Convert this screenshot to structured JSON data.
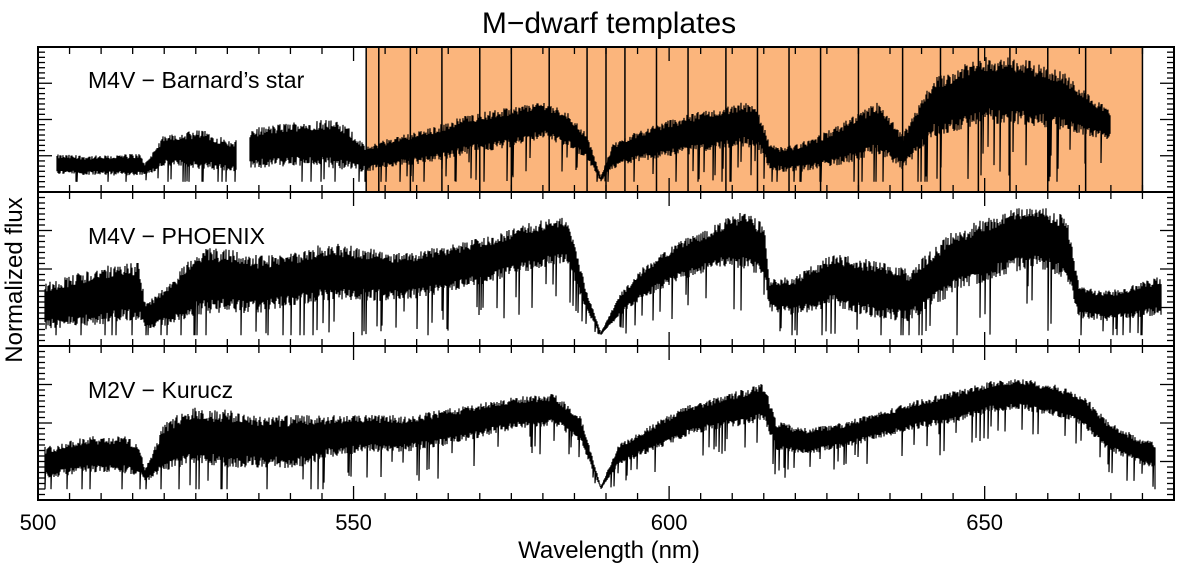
{
  "chart_data": {
    "type": "line",
    "title": "M−dwarf templates",
    "xlabel": "Wavelength (nm)",
    "ylabel": "Normalized flux",
    "xlim": [
      500,
      680
    ],
    "xticks": [
      500,
      550,
      600,
      650
    ],
    "x_minor_step": 5,
    "highlight": {
      "color": "#fbb57c",
      "x_range": [
        552,
        675
      ],
      "dividers": [
        552,
        554,
        559,
        564,
        570,
        575,
        581,
        587,
        590,
        593,
        598,
        603,
        609,
        614,
        619,
        624,
        630,
        637,
        643,
        649,
        654,
        660,
        666,
        675
      ]
    },
    "panels": [
      {
        "label": "M4V − Barnard’s star",
        "has_highlight": true,
        "ylim": [
          0,
          1
        ],
        "gaps": [
          [
            531.5,
            533.5
          ]
        ],
        "series": {
          "x": [
            503,
            510,
            516,
            517,
            520,
            526,
            531,
            534,
            540,
            546,
            549,
            552,
            556,
            562,
            568,
            575,
            580,
            584,
            587,
            589.2,
            591,
            594,
            600,
            606,
            612,
            614,
            616,
            618,
            621,
            624,
            629,
            633,
            637,
            642,
            650,
            656,
            662,
            666,
            670
          ],
          "mean": [
            0.14,
            0.13,
            0.14,
            0.1,
            0.25,
            0.26,
            0.2,
            0.27,
            0.3,
            0.31,
            0.27,
            0.18,
            0.24,
            0.29,
            0.38,
            0.44,
            0.5,
            0.42,
            0.28,
            0.02,
            0.2,
            0.27,
            0.35,
            0.41,
            0.46,
            0.43,
            0.2,
            0.18,
            0.2,
            0.24,
            0.34,
            0.43,
            0.24,
            0.6,
            0.74,
            0.72,
            0.66,
            0.55,
            0.45
          ],
          "amp": [
            0.08,
            0.08,
            0.09,
            0.05,
            0.13,
            0.16,
            0.12,
            0.16,
            0.18,
            0.2,
            0.18,
            0.1,
            0.12,
            0.14,
            0.16,
            0.16,
            0.15,
            0.14,
            0.1,
            0.02,
            0.1,
            0.12,
            0.15,
            0.17,
            0.18,
            0.16,
            0.1,
            0.1,
            0.12,
            0.14,
            0.18,
            0.21,
            0.14,
            0.24,
            0.27,
            0.27,
            0.24,
            0.18,
            0.12
          ]
        }
      },
      {
        "label": "M4V − PHOENIX",
        "has_highlight": false,
        "ylim": [
          0,
          1
        ],
        "gaps": [],
        "series": {
          "x": [
            501,
            510,
            516,
            517,
            521,
            525,
            530,
            535,
            540,
            546,
            552,
            558,
            565,
            572,
            578,
            583,
            584,
            587,
            589.2,
            592,
            596,
            601,
            606,
            609,
            612,
            615,
            616,
            620,
            626,
            632,
            638,
            645,
            652,
            658,
            663,
            665,
            670,
            678
          ],
          "mean": [
            0.22,
            0.3,
            0.33,
            0.14,
            0.24,
            0.4,
            0.42,
            0.38,
            0.42,
            0.48,
            0.46,
            0.44,
            0.5,
            0.58,
            0.67,
            0.72,
            0.7,
            0.25,
            0.01,
            0.22,
            0.4,
            0.55,
            0.64,
            0.7,
            0.72,
            0.64,
            0.3,
            0.3,
            0.42,
            0.35,
            0.3,
            0.55,
            0.68,
            0.76,
            0.66,
            0.25,
            0.22,
            0.3
          ],
          "amp": [
            0.18,
            0.22,
            0.22,
            0.1,
            0.16,
            0.25,
            0.25,
            0.22,
            0.2,
            0.22,
            0.2,
            0.18,
            0.18,
            0.18,
            0.18,
            0.18,
            0.16,
            0.08,
            0.01,
            0.08,
            0.12,
            0.15,
            0.16,
            0.18,
            0.22,
            0.2,
            0.12,
            0.15,
            0.2,
            0.22,
            0.2,
            0.24,
            0.24,
            0.24,
            0.24,
            0.12,
            0.12,
            0.15
          ]
        }
      },
      {
        "label": "M2V − Kurucz",
        "has_highlight": false,
        "ylim": [
          0,
          1
        ],
        "gaps": [],
        "series": {
          "x": [
            501,
            508,
            514,
            516,
            517,
            520,
            524,
            530,
            536,
            542,
            546,
            552,
            558,
            564,
            570,
            576,
            582,
            586,
            589.2,
            592,
            597,
            603,
            608,
            612,
            615,
            617,
            621,
            627,
            633,
            639,
            645,
            651,
            656,
            662,
            666,
            669,
            674,
            677
          ],
          "mean": [
            0.2,
            0.26,
            0.26,
            0.22,
            0.1,
            0.32,
            0.4,
            0.38,
            0.36,
            0.36,
            0.4,
            0.42,
            0.42,
            0.46,
            0.52,
            0.58,
            0.6,
            0.45,
            0.01,
            0.26,
            0.38,
            0.52,
            0.58,
            0.62,
            0.66,
            0.4,
            0.36,
            0.4,
            0.48,
            0.56,
            0.62,
            0.7,
            0.72,
            0.66,
            0.58,
            0.42,
            0.3,
            0.25
          ],
          "amp": [
            0.12,
            0.14,
            0.14,
            0.12,
            0.05,
            0.18,
            0.22,
            0.22,
            0.2,
            0.2,
            0.16,
            0.14,
            0.14,
            0.14,
            0.13,
            0.12,
            0.12,
            0.1,
            0.01,
            0.08,
            0.1,
            0.12,
            0.12,
            0.14,
            0.14,
            0.12,
            0.1,
            0.1,
            0.1,
            0.11,
            0.12,
            0.12,
            0.12,
            0.12,
            0.12,
            0.12,
            0.1,
            0.1
          ]
        }
      }
    ]
  }
}
